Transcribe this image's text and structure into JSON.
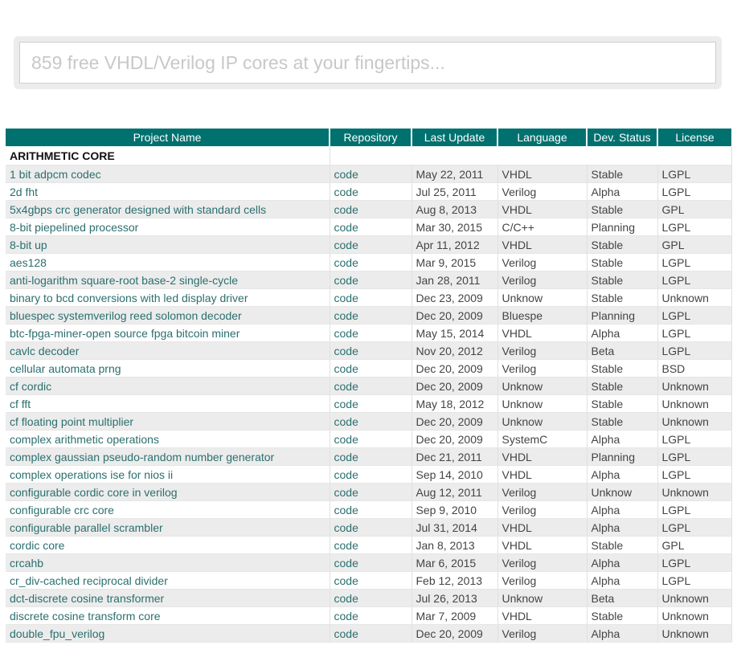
{
  "search": {
    "placeholder": "859 free VHDL/Verilog IP cores at your fingertips..."
  },
  "table": {
    "headers": [
      "Project Name",
      "Repository",
      "Last Update",
      "Language",
      "Dev. Status",
      "License"
    ],
    "category": "ARITHMETIC CORE",
    "rows": [
      {
        "name": "1 bit adpcm codec",
        "repo": "code",
        "date": "May 22, 2011",
        "lang": "VHDL",
        "status": "Stable",
        "license": "LGPL"
      },
      {
        "name": "2d fht",
        "repo": "code",
        "date": "Jul 25, 2011",
        "lang": "Verilog",
        "status": "Alpha",
        "license": "LGPL"
      },
      {
        "name": "5x4gbps crc generator designed with standard cells",
        "repo": "code",
        "date": "Aug 8, 2013",
        "lang": "VHDL",
        "status": "Stable",
        "license": "GPL"
      },
      {
        "name": "8-bit piepelined processor",
        "repo": "code",
        "date": "Mar 30, 2015",
        "lang": "C/C++",
        "status": "Planning",
        "license": "LGPL"
      },
      {
        "name": "8-bit up",
        "repo": "code",
        "date": "Apr 11, 2012",
        "lang": "VHDL",
        "status": "Stable",
        "license": "GPL"
      },
      {
        "name": "aes128",
        "repo": "code",
        "date": "Mar 9, 2015",
        "lang": "Verilog",
        "status": "Stable",
        "license": "LGPL"
      },
      {
        "name": "anti-logarithm square-root base-2 single-cycle",
        "repo": "code",
        "date": "Jan 28, 2011",
        "lang": "Verilog",
        "status": "Stable",
        "license": "LGPL"
      },
      {
        "name": "binary to bcd conversions with led display driver",
        "repo": "code",
        "date": "Dec 23, 2009",
        "lang": "Unknow",
        "status": "Stable",
        "license": "Unknown"
      },
      {
        "name": "bluespec systemverilog reed solomon decoder",
        "repo": "code",
        "date": "Dec 20, 2009",
        "lang": "Bluespe",
        "status": "Planning",
        "license": "LGPL"
      },
      {
        "name": "btc-fpga-miner-open source fpga bitcoin miner",
        "repo": "code",
        "date": "May 15, 2014",
        "lang": "VHDL",
        "status": "Alpha",
        "license": "LGPL"
      },
      {
        "name": "cavlc decoder",
        "repo": "code",
        "date": "Nov 20, 2012",
        "lang": "Verilog",
        "status": "Beta",
        "license": "LGPL"
      },
      {
        "name": "cellular automata prng",
        "repo": "code",
        "date": "Dec 20, 2009",
        "lang": "Verilog",
        "status": "Stable",
        "license": "BSD"
      },
      {
        "name": "cf cordic",
        "repo": "code",
        "date": "Dec 20, 2009",
        "lang": "Unknow",
        "status": "Stable",
        "license": "Unknown"
      },
      {
        "name": "cf fft",
        "repo": "code",
        "date": "May 18, 2012",
        "lang": "Unknow",
        "status": "Stable",
        "license": "Unknown"
      },
      {
        "name": "cf floating point multiplier",
        "repo": "code",
        "date": "Dec 20, 2009",
        "lang": "Unknow",
        "status": "Stable",
        "license": "Unknown"
      },
      {
        "name": "complex arithmetic operations",
        "repo": "code",
        "date": "Dec 20, 2009",
        "lang": "SystemC",
        "status": "Alpha",
        "license": "LGPL"
      },
      {
        "name": "complex gaussian pseudo-random number generator",
        "repo": "code",
        "date": "Dec 21, 2011",
        "lang": "VHDL",
        "status": "Planning",
        "license": "LGPL"
      },
      {
        "name": "complex operations ise for nios ii",
        "repo": "code",
        "date": "Sep 14, 2010",
        "lang": "VHDL",
        "status": "Alpha",
        "license": "LGPL"
      },
      {
        "name": "configurable cordic core in verilog",
        "repo": "code",
        "date": "Aug 12, 2011",
        "lang": "Verilog",
        "status": "Unknow",
        "license": "Unknown"
      },
      {
        "name": "configurable crc core",
        "repo": "code",
        "date": "Sep 9, 2010",
        "lang": "Verilog",
        "status": "Alpha",
        "license": "LGPL"
      },
      {
        "name": "configurable parallel scrambler",
        "repo": "code",
        "date": "Jul 31, 2014",
        "lang": "VHDL",
        "status": "Alpha",
        "license": "LGPL"
      },
      {
        "name": "cordic core",
        "repo": "code",
        "date": "Jan 8, 2013",
        "lang": "VHDL",
        "status": "Stable",
        "license": "GPL"
      },
      {
        "name": "crcahb",
        "repo": "code",
        "date": "Mar 6, 2015",
        "lang": "Verilog",
        "status": "Alpha",
        "license": "LGPL"
      },
      {
        "name": "cr_div-cached reciprocal divider",
        "repo": "code",
        "date": "Feb 12, 2013",
        "lang": "Verilog",
        "status": "Alpha",
        "license": "LGPL"
      },
      {
        "name": "dct-discrete cosine transformer",
        "repo": "code",
        "date": "Jul 26, 2013",
        "lang": "Unknow",
        "status": "Beta",
        "license": "Unknown"
      },
      {
        "name": "discrete cosine transform core",
        "repo": "code",
        "date": "Mar 7, 2009",
        "lang": "VHDL",
        "status": "Stable",
        "license": "Unknown"
      },
      {
        "name": "double_fpu_verilog",
        "repo": "code",
        "date": "Dec 20, 2009",
        "lang": "Verilog",
        "status": "Alpha",
        "license": "Unknown"
      }
    ]
  }
}
